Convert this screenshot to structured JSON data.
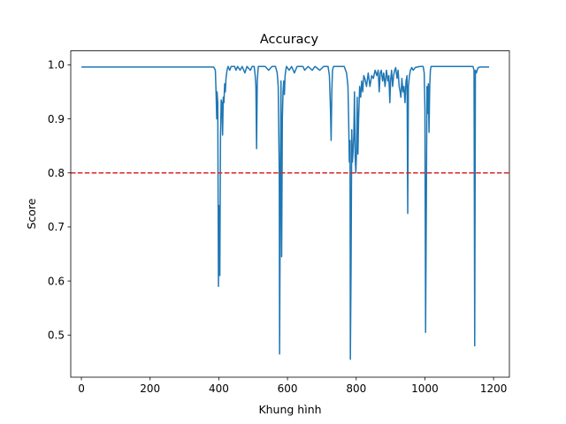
{
  "chart_data": {
    "type": "line",
    "title": "Accuracy",
    "xlabel": "Khung hình",
    "ylabel": "Score",
    "xlim": [
      -31,
      1246
    ],
    "ylim": [
      0.422,
      1.026
    ],
    "xticks": [
      0,
      200,
      400,
      600,
      800,
      1000,
      1200
    ],
    "yticks": [
      0.5,
      0.6,
      0.7,
      0.8,
      0.9,
      1.0
    ],
    "xtick_labels": [
      "0",
      "200",
      "400",
      "600",
      "800",
      "1000",
      "1200"
    ],
    "ytick_labels": [
      "0.5",
      "0.6",
      "0.7",
      "0.8",
      "0.9",
      "1.0"
    ],
    "grid": false,
    "series": [
      {
        "color": "#1f77b4",
        "points": [
          [
            0,
            0.996
          ],
          [
            385,
            0.996
          ],
          [
            390,
            0.99
          ],
          [
            392,
            0.95
          ],
          [
            394,
            0.9
          ],
          [
            395,
            0.95
          ],
          [
            397,
            0.93
          ],
          [
            399,
            0.59
          ],
          [
            400,
            0.74
          ],
          [
            402,
            0.67
          ],
          [
            403,
            0.61
          ],
          [
            405,
            0.87
          ],
          [
            407,
            0.935
          ],
          [
            409,
            0.93
          ],
          [
            411,
            0.87
          ],
          [
            413,
            0.94
          ],
          [
            415,
            0.93
          ],
          [
            417,
            0.965
          ],
          [
            419,
            0.95
          ],
          [
            421,
            0.975
          ],
          [
            424,
            0.99
          ],
          [
            427,
            0.997
          ],
          [
            432,
            0.99
          ],
          [
            436,
            0.997
          ],
          [
            446,
            0.997
          ],
          [
            450,
            0.99
          ],
          [
            455,
            0.997
          ],
          [
            462,
            0.99
          ],
          [
            468,
            0.997
          ],
          [
            476,
            0.985
          ],
          [
            482,
            0.997
          ],
          [
            492,
            0.99
          ],
          [
            497,
            0.997
          ],
          [
            503,
            0.997
          ],
          [
            506,
            0.98
          ],
          [
            508,
            0.96
          ],
          [
            510,
            0.845
          ],
          [
            512,
            0.97
          ],
          [
            515,
            0.997
          ],
          [
            535,
            0.997
          ],
          [
            545,
            0.99
          ],
          [
            555,
            0.997
          ],
          [
            565,
            0.997
          ],
          [
            570,
            0.985
          ],
          [
            573,
            0.96
          ],
          [
            576,
            0.8
          ],
          [
            577,
            0.465
          ],
          [
            579,
            0.76
          ],
          [
            581,
            0.97
          ],
          [
            583,
            0.645
          ],
          [
            585,
            0.9
          ],
          [
            587,
            0.95
          ],
          [
            589,
            0.97
          ],
          [
            591,
            0.945
          ],
          [
            593,
            0.98
          ],
          [
            595,
            0.99
          ],
          [
            597,
            0.997
          ],
          [
            605,
            0.99
          ],
          [
            612,
            0.997
          ],
          [
            620,
            0.985
          ],
          [
            628,
            0.997
          ],
          [
            645,
            0.997
          ],
          [
            650,
            0.99
          ],
          [
            660,
            0.997
          ],
          [
            672,
            0.99
          ],
          [
            680,
            0.997
          ],
          [
            694,
            0.99
          ],
          [
            705,
            0.997
          ],
          [
            718,
            0.997
          ],
          [
            722,
            0.98
          ],
          [
            725,
            0.92
          ],
          [
            727,
            0.86
          ],
          [
            729,
            0.95
          ],
          [
            731,
            0.99
          ],
          [
            734,
            0.997
          ],
          [
            750,
            0.997
          ],
          [
            765,
            0.997
          ],
          [
            772,
            0.985
          ],
          [
            776,
            0.96
          ],
          [
            778,
            0.9
          ],
          [
            780,
            0.82
          ],
          [
            782,
            0.86
          ],
          [
            783,
            0.455
          ],
          [
            785,
            0.62
          ],
          [
            787,
            0.88
          ],
          [
            789,
            0.82
          ],
          [
            791,
            0.84
          ],
          [
            793,
            0.87
          ],
          [
            795,
            0.95
          ],
          [
            797,
            0.83
          ],
          [
            799,
            0.8
          ],
          [
            801,
            0.84
          ],
          [
            803,
            0.94
          ],
          [
            805,
            0.835
          ],
          [
            807,
            0.9
          ],
          [
            810,
            0.96
          ],
          [
            813,
            0.94
          ],
          [
            816,
            0.97
          ],
          [
            819,
            0.95
          ],
          [
            822,
            0.98
          ],
          [
            825,
            0.975
          ],
          [
            830,
            0.96
          ],
          [
            835,
            0.985
          ],
          [
            840,
            0.96
          ],
          [
            845,
            0.98
          ],
          [
            850,
            0.975
          ],
          [
            855,
            0.99
          ],
          [
            860,
            0.98
          ],
          [
            864,
            0.99
          ],
          [
            867,
            0.95
          ],
          [
            870,
            0.985
          ],
          [
            873,
            0.99
          ],
          [
            877,
            0.97
          ],
          [
            880,
            0.985
          ],
          [
            884,
            0.96
          ],
          [
            888,
            0.99
          ],
          [
            892,
            0.97
          ],
          [
            895,
            0.98
          ],
          [
            898,
            0.93
          ],
          [
            900,
            0.97
          ],
          [
            903,
            0.99
          ],
          [
            906,
            0.96
          ],
          [
            909,
            0.98
          ],
          [
            912,
            0.99
          ],
          [
            915,
            0.995
          ],
          [
            919,
            0.975
          ],
          [
            922,
            0.99
          ],
          [
            925,
            0.96
          ],
          [
            928,
            0.95
          ],
          [
            930,
            0.94
          ],
          [
            933,
            0.975
          ],
          [
            936,
            0.95
          ],
          [
            939,
            0.96
          ],
          [
            942,
            0.93
          ],
          [
            945,
            0.97
          ],
          [
            948,
            0.98
          ],
          [
            950,
            0.725
          ],
          [
            952,
            0.96
          ],
          [
            955,
            0.98
          ],
          [
            958,
            0.99
          ],
          [
            962,
            0.995
          ],
          [
            966,
            0.99
          ],
          [
            972,
            0.995
          ],
          [
            985,
            0.997
          ],
          [
            995,
            0.997
          ],
          [
            998,
            0.985
          ],
          [
            1000,
            0.92
          ],
          [
            1002,
            0.505
          ],
          [
            1004,
            0.72
          ],
          [
            1006,
            0.96
          ],
          [
            1008,
            0.91
          ],
          [
            1010,
            0.965
          ],
          [
            1012,
            0.875
          ],
          [
            1014,
            0.96
          ],
          [
            1016,
            0.99
          ],
          [
            1018,
            0.997
          ],
          [
            1140,
            0.997
          ],
          [
            1143,
            0.99
          ],
          [
            1145,
            0.48
          ],
          [
            1147,
            0.99
          ],
          [
            1150,
            0.985
          ],
          [
            1154,
            0.994
          ],
          [
            1160,
            0.996
          ],
          [
            1187,
            0.996
          ]
        ]
      }
    ],
    "threshold": {
      "y": 0.8,
      "color": "#d62728",
      "style": "dashed"
    }
  }
}
